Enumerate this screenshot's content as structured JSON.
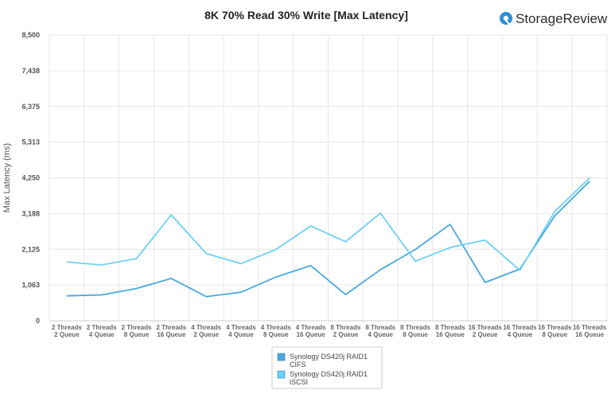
{
  "brand": {
    "logo_text": "StorageReview"
  },
  "chart_data": {
    "type": "line",
    "title": "8K 70% Read 30% Write [Max Latency]",
    "ylabel": "Max Latency  (ms)",
    "xlabel": "",
    "ylim": [
      0,
      8500
    ],
    "yticks": [
      "8,500",
      "7,438",
      "6,375",
      "5,313",
      "4,250",
      "3,188",
      "2,125",
      "1,063",
      "0"
    ],
    "ytick_values": [
      8500,
      7438,
      6375,
      5313,
      4250,
      3188,
      2125,
      1063,
      0
    ],
    "grid": true,
    "legend_position": "bottom-center",
    "categories": [
      [
        "2 Threads",
        "2 Queue"
      ],
      [
        "2 Threads",
        "4 Queue"
      ],
      [
        "2 Threads",
        "8 Queue"
      ],
      [
        "2 Threads",
        "16 Queue"
      ],
      [
        "4 Threads",
        "2 Queue"
      ],
      [
        "4 Threads",
        "4 Queue"
      ],
      [
        "4 Threads",
        "8 Queue"
      ],
      [
        "4 Threads",
        "16 Queue"
      ],
      [
        "8 Threads",
        "2 Queue"
      ],
      [
        "8 Threads",
        "4 Queue"
      ],
      [
        "8 Threads",
        "8 Queue"
      ],
      [
        "8 Threads",
        "16 Queue"
      ],
      [
        "16 Threads",
        "2 Queue"
      ],
      [
        "16 Threads",
        "4 Queue"
      ],
      [
        "16 Threads",
        "8 Queue"
      ],
      [
        "16 Threads",
        "16 Queue"
      ]
    ],
    "series": [
      {
        "name": [
          "Synology DS420j RAID1",
          "CIFS"
        ],
        "color": "#4aa8e0",
        "values": [
          740,
          770,
          960,
          1260,
          720,
          850,
          1300,
          1640,
          780,
          1520,
          2120,
          2870,
          1140,
          1540,
          3120,
          4150
        ]
      },
      {
        "name": [
          "Synology DS420j RAID1",
          "iSCSI"
        ],
        "color": "#6dd0f5",
        "values": [
          1750,
          1660,
          1850,
          3150,
          2000,
          1700,
          2120,
          2820,
          2350,
          3200,
          1770,
          2180,
          2400,
          1500,
          3250,
          4250
        ]
      }
    ]
  }
}
